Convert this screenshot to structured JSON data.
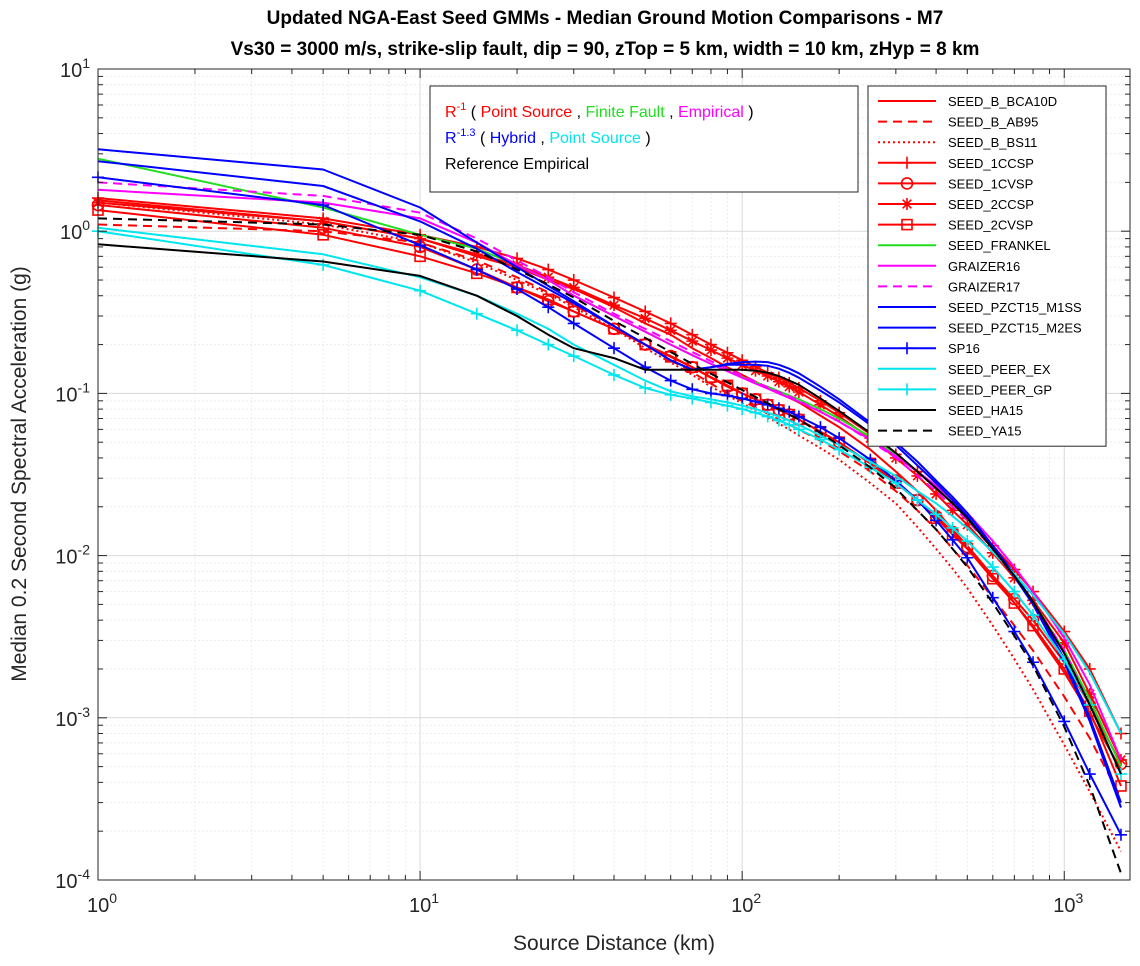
{
  "chart_data": {
    "type": "line",
    "title": "Updated NGA-East Seed GMMs - Median Ground Motion Comparisons - M7",
    "subtitle": "Vs30 = 3000 m/s, strike-slip fault, dip = 90, zTop = 5 km, width = 10 km, zHyp = 8 km",
    "xlabel": "Source Distance (km)",
    "ylabel": "Median 0.2 Second Spectral Acceleration (g)",
    "xscale": "log",
    "yscale": "log",
    "xlim": [
      1,
      1600
    ],
    "ylim": [
      0.0001,
      10
    ],
    "grid": true,
    "x_ticks": [
      {
        "base": "10",
        "exp": "0"
      },
      {
        "base": "10",
        "exp": "1"
      },
      {
        "base": "10",
        "exp": "2"
      },
      {
        "base": "10",
        "exp": "3"
      }
    ],
    "y_ticks": [
      {
        "base": "10",
        "exp": "-4"
      },
      {
        "base": "10",
        "exp": "-3"
      },
      {
        "base": "10",
        "exp": "-2"
      },
      {
        "base": "10",
        "exp": "-1"
      },
      {
        "base": "10",
        "exp": "0"
      },
      {
        "base": "10",
        "exp": "1"
      }
    ],
    "legend_position": "top-right",
    "annotation": {
      "lines": [
        {
          "prefix": "R",
          "sup": "-1",
          "parts": [
            {
              "text": " ( ",
              "color": "#000000"
            },
            {
              "text": "Point Source",
              "color": "#ff0000"
            },
            {
              "text": " , ",
              "color": "#000000"
            },
            {
              "text": "Finite Fault",
              "color": "#22dd22"
            },
            {
              "text": " , ",
              "color": "#000000"
            },
            {
              "text": "Empirical",
              "color": "#ff00ff"
            },
            {
              "text": " )",
              "color": "#000000"
            }
          ],
          "prefix_color": "#ff0000"
        },
        {
          "prefix": "R",
          "sup": "-1.3",
          "parts": [
            {
              "text": " ( ",
              "color": "#000000"
            },
            {
              "text": "Hybrid",
              "color": "#0000ff"
            },
            {
              "text": " , ",
              "color": "#000000"
            },
            {
              "text": "Point Source",
              "color": "#00e5ee"
            },
            {
              "text": " )",
              "color": "#000000"
            }
          ],
          "prefix_color": "#0000ff"
        },
        {
          "prefix": "",
          "sup": "",
          "parts": [
            {
              "text": "Reference Empirical",
              "color": "#000000"
            }
          ],
          "prefix_color": "#000000"
        }
      ]
    },
    "x": [
      1,
      5,
      10,
      15,
      20,
      25,
      30,
      40,
      50,
      60,
      70,
      80,
      90,
      100,
      110,
      120,
      130,
      140,
      150,
      175,
      200,
      250,
      300,
      350,
      400,
      450,
      500,
      600,
      700,
      800,
      1000,
      1200,
      1500
    ],
    "series": [
      {
        "name": "SEED_B_BCA10D",
        "color": "#ff0000",
        "dash": "solid",
        "marker": "none",
        "values": [
          1.55,
          1.15,
          0.9,
          0.7,
          0.6,
          0.5,
          0.44,
          0.34,
          0.27,
          0.23,
          0.19,
          0.165,
          0.145,
          0.13,
          0.118,
          0.108,
          0.1,
          0.094,
          0.088,
          0.073,
          0.062,
          0.045,
          0.033,
          0.025,
          0.019,
          0.0145,
          0.0115,
          0.0075,
          0.0051,
          0.0036,
          0.0019,
          0.00105,
          0.00048
        ]
      },
      {
        "name": "SEED_B_AB95",
        "color": "#ff0000",
        "dash": "dashed",
        "marker": "none",
        "values": [
          1.1,
          1.0,
          0.85,
          0.66,
          0.52,
          0.42,
          0.35,
          0.26,
          0.2,
          0.16,
          0.135,
          0.115,
          0.1,
          0.09,
          0.082,
          0.075,
          0.069,
          0.064,
          0.06,
          0.051,
          0.044,
          0.033,
          0.025,
          0.019,
          0.0145,
          0.011,
          0.0087,
          0.0055,
          0.0037,
          0.0026,
          0.00135,
          0.00075,
          0.00032
        ]
      },
      {
        "name": "SEED_B_BS11",
        "color": "#ff0000",
        "dash": "dotted",
        "marker": "none",
        "values": [
          1.5,
          1.1,
          0.85,
          0.64,
          0.5,
          0.41,
          0.34,
          0.25,
          0.19,
          0.155,
          0.13,
          0.11,
          0.097,
          0.087,
          0.078,
          0.071,
          0.065,
          0.06,
          0.055,
          0.046,
          0.039,
          0.028,
          0.021,
          0.015,
          0.011,
          0.0083,
          0.0063,
          0.0037,
          0.0023,
          0.0015,
          0.00068,
          0.00035,
          0.00015
        ]
      },
      {
        "name": "SEED_1CCSP",
        "color": "#ff0000",
        "dash": "solid",
        "marker": "plus",
        "values": [
          1.6,
          1.2,
          0.95,
          0.8,
          0.68,
          0.58,
          0.5,
          0.39,
          0.32,
          0.27,
          0.23,
          0.2,
          0.178,
          0.16,
          0.146,
          0.134,
          0.125,
          0.116,
          0.108,
          0.09,
          0.076,
          0.056,
          0.042,
          0.033,
          0.026,
          0.021,
          0.017,
          0.0115,
          0.0082,
          0.006,
          0.0034,
          0.002,
          0.0008
        ]
      },
      {
        "name": "SEED_1CVSP",
        "color": "#ff0000",
        "dash": "solid",
        "marker": "circle",
        "values": [
          1.45,
          1.05,
          0.8,
          0.58,
          0.45,
          0.37,
          0.32,
          0.25,
          0.2,
          0.17,
          0.145,
          0.125,
          0.11,
          0.1,
          0.092,
          0.085,
          0.079,
          0.074,
          0.069,
          0.058,
          0.05,
          0.037,
          0.029,
          0.022,
          0.0175,
          0.014,
          0.0113,
          0.0075,
          0.0054,
          0.004,
          0.0022,
          0.0012,
          0.00052
        ]
      },
      {
        "name": "SEED_2CCSP",
        "color": "#ff0000",
        "dash": "solid",
        "marker": "star",
        "values": [
          1.5,
          1.15,
          0.9,
          0.72,
          0.62,
          0.52,
          0.45,
          0.35,
          0.29,
          0.245,
          0.21,
          0.185,
          0.165,
          0.15,
          0.138,
          0.128,
          0.118,
          0.11,
          0.102,
          0.085,
          0.072,
          0.053,
          0.04,
          0.031,
          0.024,
          0.019,
          0.0155,
          0.0104,
          0.0073,
          0.0053,
          0.0029,
          0.0014,
          0.00055
        ]
      },
      {
        "name": "SEED_2CVSP",
        "color": "#ff0000",
        "dash": "solid",
        "marker": "square",
        "values": [
          1.35,
          0.95,
          0.7,
          0.55,
          0.45,
          0.38,
          0.32,
          0.25,
          0.2,
          0.168,
          0.145,
          0.126,
          0.112,
          0.1,
          0.092,
          0.085,
          0.079,
          0.074,
          0.069,
          0.058,
          0.05,
          0.037,
          0.028,
          0.022,
          0.017,
          0.0135,
          0.011,
          0.0072,
          0.0051,
          0.0037,
          0.002,
          0.0011,
          0.00038
        ]
      },
      {
        "name": "SEED_FRANKEL",
        "color": "#22dd22",
        "dash": "solid",
        "marker": "none",
        "values": [
          2.8,
          1.4,
          0.95,
          0.78,
          0.62,
          0.5,
          0.4,
          0.3,
          0.24,
          0.2,
          0.172,
          0.152,
          0.138,
          0.126,
          0.117,
          0.11,
          0.103,
          0.097,
          0.092,
          0.08,
          0.07,
          0.054,
          0.042,
          0.033,
          0.026,
          0.021,
          0.017,
          0.011,
          0.0075,
          0.0052,
          0.0026,
          0.0013,
          0.0005
        ]
      },
      {
        "name": "GRAIZER16",
        "color": "#ff00ff",
        "dash": "solid",
        "marker": "none",
        "values": [
          1.8,
          1.5,
          1.2,
          0.85,
          0.62,
          0.5,
          0.4,
          0.3,
          0.24,
          0.2,
          0.172,
          0.152,
          0.137,
          0.125,
          0.115,
          0.107,
          0.1,
          0.094,
          0.089,
          0.077,
          0.067,
          0.052,
          0.041,
          0.033,
          0.027,
          0.022,
          0.0183,
          0.0123,
          0.0085,
          0.006,
          0.0031,
          0.0016,
          0.00055
        ]
      },
      {
        "name": "GRAIZER17",
        "color": "#ff00ff",
        "dash": "dashed",
        "marker": "none",
        "values": [
          2.0,
          1.65,
          1.3,
          0.9,
          0.66,
          0.52,
          0.42,
          0.31,
          0.25,
          0.21,
          0.18,
          0.158,
          0.142,
          0.129,
          0.118,
          0.109,
          0.102,
          0.096,
          0.09,
          0.077,
          0.067,
          0.051,
          0.04,
          0.031,
          0.025,
          0.02,
          0.0165,
          0.011,
          0.0075,
          0.0052,
          0.0026,
          0.0012,
          0.00045
        ]
      },
      {
        "name": "SEED_PZCT15_M1SS",
        "color": "#0000ff",
        "dash": "solid",
        "marker": "none",
        "values": [
          3.2,
          2.4,
          1.4,
          0.85,
          0.6,
          0.46,
          0.37,
          0.26,
          0.2,
          0.16,
          0.14,
          0.145,
          0.15,
          0.15,
          0.15,
          0.148,
          0.142,
          0.134,
          0.125,
          0.104,
          0.088,
          0.064,
          0.048,
          0.036,
          0.028,
          0.022,
          0.0175,
          0.011,
          0.0074,
          0.005,
          0.0022,
          0.00095,
          0.00028
        ]
      },
      {
        "name": "SEED_PZCT15_M2ES",
        "color": "#0000ff",
        "dash": "solid",
        "marker": "none",
        "values": [
          2.7,
          1.9,
          1.15,
          0.78,
          0.56,
          0.44,
          0.36,
          0.26,
          0.2,
          0.16,
          0.14,
          0.145,
          0.152,
          0.156,
          0.157,
          0.156,
          0.15,
          0.142,
          0.133,
          0.11,
          0.092,
          0.066,
          0.05,
          0.038,
          0.029,
          0.023,
          0.0183,
          0.0115,
          0.0077,
          0.0052,
          0.0023,
          0.001,
          0.0003
        ]
      },
      {
        "name": "SP16",
        "color": "#0000ff",
        "dash": "solid",
        "marker": "plus",
        "values": [
          2.15,
          1.45,
          0.82,
          0.58,
          0.44,
          0.34,
          0.27,
          0.19,
          0.145,
          0.12,
          0.106,
          0.1,
          0.097,
          0.093,
          0.089,
          0.085,
          0.081,
          0.077,
          0.072,
          0.062,
          0.053,
          0.039,
          0.029,
          0.022,
          0.0165,
          0.0125,
          0.0097,
          0.0055,
          0.0034,
          0.0022,
          0.00095,
          0.00045,
          0.00019
        ]
      },
      {
        "name": "SEED_PEER_EX",
        "color": "#00e5ee",
        "dash": "solid",
        "marker": "none",
        "values": [
          1.05,
          0.72,
          0.52,
          0.4,
          0.31,
          0.25,
          0.2,
          0.15,
          0.12,
          0.103,
          0.096,
          0.092,
          0.088,
          0.084,
          0.08,
          0.076,
          0.072,
          0.068,
          0.064,
          0.055,
          0.048,
          0.038,
          0.031,
          0.025,
          0.021,
          0.0175,
          0.0148,
          0.0105,
          0.0077,
          0.0057,
          0.0033,
          0.0019,
          0.0008
        ]
      },
      {
        "name": "SEED_PEER_GP",
        "color": "#00e5ee",
        "dash": "solid",
        "marker": "plus",
        "values": [
          1.0,
          0.62,
          0.43,
          0.31,
          0.245,
          0.2,
          0.17,
          0.13,
          0.108,
          0.098,
          0.093,
          0.088,
          0.084,
          0.08,
          0.076,
          0.072,
          0.068,
          0.064,
          0.06,
          0.052,
          0.045,
          0.035,
          0.028,
          0.022,
          0.018,
          0.0148,
          0.0123,
          0.0085,
          0.006,
          0.0043,
          0.0023,
          0.0012,
          0.00045
        ]
      },
      {
        "name": "SEED_HA15",
        "color": "#000000",
        "dash": "solid",
        "marker": "none",
        "values": [
          0.83,
          0.65,
          0.53,
          0.4,
          0.3,
          0.23,
          0.19,
          0.165,
          0.14,
          0.14,
          0.14,
          0.14,
          0.14,
          0.14,
          0.138,
          0.134,
          0.128,
          0.12,
          0.113,
          0.093,
          0.078,
          0.057,
          0.043,
          0.033,
          0.026,
          0.021,
          0.017,
          0.011,
          0.0075,
          0.0052,
          0.0025,
          0.0012,
          0.00045
        ]
      },
      {
        "name": "SEED_YA15",
        "color": "#000000",
        "dash": "dashed",
        "marker": "none",
        "values": [
          1.2,
          1.1,
          0.95,
          0.75,
          0.58,
          0.47,
          0.39,
          0.28,
          0.22,
          0.18,
          0.152,
          0.132,
          0.117,
          0.105,
          0.095,
          0.087,
          0.08,
          0.074,
          0.069,
          0.057,
          0.048,
          0.035,
          0.026,
          0.019,
          0.0145,
          0.011,
          0.0085,
          0.0051,
          0.0032,
          0.0021,
          0.00088,
          0.00038,
          0.00011
        ]
      }
    ]
  }
}
